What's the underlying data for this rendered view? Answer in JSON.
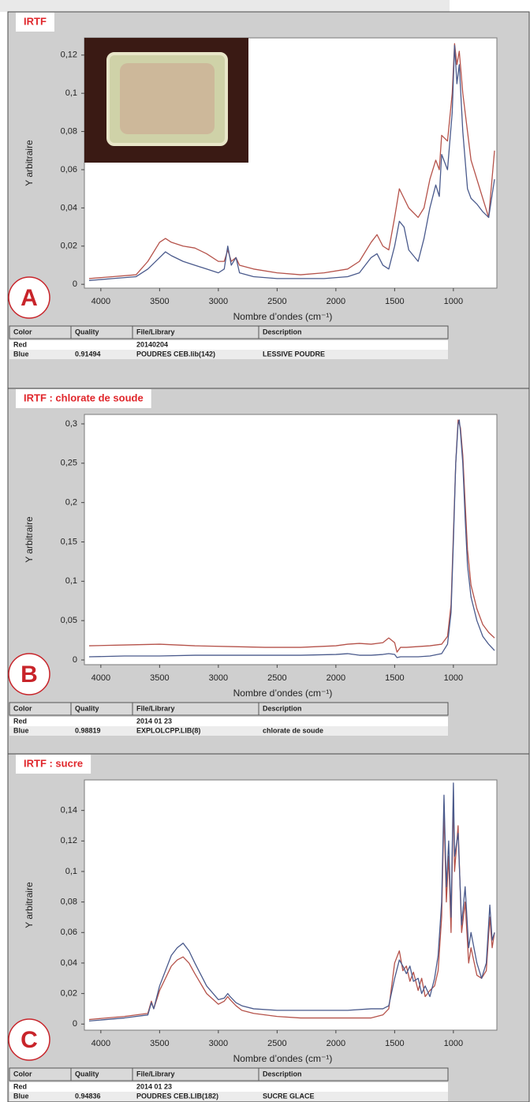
{
  "chart_data": [
    {
      "type": "line",
      "title": "IRTF",
      "panel_label": "A",
      "y_label": "Y arbitraire",
      "x_label": "Nombre d’ondes (cm⁻¹)",
      "xlim": [
        4140,
        630
      ],
      "xticks": [
        4000,
        3500,
        3000,
        2500,
        2000,
        1500,
        1000
      ],
      "ylim": [
        -0.002,
        0.129
      ],
      "yticks": [
        0,
        {
          "value": 0.02,
          "label": "0,02"
        },
        {
          "value": 0.04,
          "label": "0,04"
        },
        {
          "value": 0.06,
          "label": "0,06"
        },
        {
          "value": 0.08,
          "label": "0,08"
        },
        {
          "value": 0.1,
          "label": "0,1"
        },
        {
          "value": 0.12,
          "label": "0,12"
        }
      ],
      "x": [
        4100,
        3900,
        3700,
        3600,
        3500,
        3450,
        3400,
        3300,
        3200,
        3100,
        3000,
        2950,
        2920,
        2890,
        2850,
        2820,
        2700,
        2500,
        2300,
        2100,
        1900,
        1800,
        1700,
        1650,
        1600,
        1550,
        1500,
        1460,
        1420,
        1380,
        1300,
        1250,
        1200,
        1150,
        1120,
        1100,
        1050,
        1010,
        990,
        970,
        950,
        920,
        880,
        850,
        800,
        750,
        700,
        650
      ],
      "series": [
        {
          "color": "#b5524a",
          "values": [
            0.003,
            0.004,
            0.005,
            0.012,
            0.022,
            0.024,
            0.022,
            0.02,
            0.019,
            0.016,
            0.012,
            0.012,
            0.018,
            0.012,
            0.014,
            0.01,
            0.008,
            0.006,
            0.005,
            0.006,
            0.008,
            0.012,
            0.022,
            0.026,
            0.02,
            0.018,
            0.035,
            0.05,
            0.045,
            0.04,
            0.035,
            0.04,
            0.055,
            0.065,
            0.06,
            0.078,
            0.075,
            0.1,
            0.126,
            0.115,
            0.122,
            0.1,
            0.08,
            0.065,
            0.055,
            0.045,
            0.035,
            0.07
          ]
        },
        {
          "color": "#4a5a8c",
          "values": [
            0.002,
            0.003,
            0.004,
            0.008,
            0.014,
            0.017,
            0.015,
            0.012,
            0.01,
            0.008,
            0.006,
            0.008,
            0.02,
            0.01,
            0.014,
            0.006,
            0.004,
            0.003,
            0.003,
            0.003,
            0.004,
            0.006,
            0.014,
            0.016,
            0.01,
            0.008,
            0.02,
            0.033,
            0.03,
            0.018,
            0.012,
            0.024,
            0.04,
            0.052,
            0.046,
            0.068,
            0.06,
            0.09,
            0.125,
            0.105,
            0.115,
            0.08,
            0.05,
            0.045,
            0.042,
            0.038,
            0.035,
            0.055
          ]
        }
      ],
      "table": {
        "header": [
          "Color",
          "Quality",
          "File/Library",
          "Description"
        ],
        "rows": [
          [
            "Red",
            null,
            "20140204",
            null
          ],
          [
            "Blue",
            "0.91494",
            "POUDRES CEB.lib(142)",
            "LESSIVE POUDRE"
          ]
        ]
      }
    },
    {
      "type": "line",
      "title": "IRTF : chlorate de soude",
      "panel_label": "B",
      "y_label": "Y arbitraire",
      "x_label": "Nombre d’ondes (cm⁻¹)",
      "xlim": [
        4140,
        630
      ],
      "xticks": [
        4000,
        3500,
        3000,
        2500,
        2000,
        1500,
        1000
      ],
      "ylim": [
        -0.006,
        0.312
      ],
      "yticks": [
        0,
        {
          "value": 0.05,
          "label": "0,05"
        },
        {
          "value": 0.1,
          "label": "0,1"
        },
        {
          "value": 0.15,
          "label": "0,15"
        },
        {
          "value": 0.2,
          "label": "0,2"
        },
        {
          "value": 0.25,
          "label": "0,25"
        },
        {
          "value": 0.3,
          "label": "0,3"
        }
      ],
      "x": [
        4100,
        3800,
        3500,
        3200,
        2900,
        2600,
        2300,
        2000,
        1900,
        1800,
        1700,
        1600,
        1550,
        1500,
        1480,
        1450,
        1400,
        1300,
        1200,
        1100,
        1050,
        1020,
        1000,
        980,
        960,
        950,
        940,
        920,
        900,
        880,
        850,
        800,
        750,
        700,
        650
      ],
      "series": [
        {
          "color": "#b5524a",
          "values": [
            0.018,
            0.019,
            0.02,
            0.018,
            0.017,
            0.016,
            0.016,
            0.018,
            0.02,
            0.021,
            0.02,
            0.022,
            0.028,
            0.022,
            0.01,
            0.016,
            0.016,
            0.017,
            0.018,
            0.02,
            0.03,
            0.07,
            0.16,
            0.25,
            0.305,
            0.3,
            0.295,
            0.26,
            0.2,
            0.14,
            0.095,
            0.065,
            0.045,
            0.035,
            0.028
          ]
        },
        {
          "color": "#4a5a8c",
          "values": [
            0.004,
            0.005,
            0.005,
            0.006,
            0.006,
            0.006,
            0.006,
            0.007,
            0.008,
            0.006,
            0.006,
            0.007,
            0.008,
            0.007,
            0.003,
            0.004,
            0.004,
            0.004,
            0.005,
            0.008,
            0.02,
            0.06,
            0.15,
            0.25,
            0.3,
            0.305,
            0.29,
            0.25,
            0.18,
            0.12,
            0.08,
            0.05,
            0.03,
            0.02,
            0.012
          ]
        }
      ],
      "table": {
        "header": [
          "Color",
          "Quality",
          "File/Library",
          "Description"
        ],
        "rows": [
          [
            "Red",
            null,
            "2014 01 23",
            null
          ],
          [
            "Blue",
            "0.98819",
            "EXPLOLCPP.LIB(8)",
            "chlorate de soude"
          ]
        ]
      }
    },
    {
      "type": "line",
      "title": "IRTF : sucre",
      "panel_label": "C",
      "y_label": "Y arbitraire",
      "x_label": "Nombre d’ondes (cm⁻¹)",
      "xlim": [
        4140,
        630
      ],
      "xticks": [
        4000,
        3500,
        3000,
        2500,
        2000,
        1500,
        1000
      ],
      "ylim": [
        -0.004,
        0.16
      ],
      "yticks": [
        0,
        {
          "value": 0.02,
          "label": "0,02"
        },
        {
          "value": 0.04,
          "label": "0,04"
        },
        {
          "value": 0.06,
          "label": "0,06"
        },
        {
          "value": 0.08,
          "label": "0,08"
        },
        {
          "value": 0.1,
          "label": "0,1"
        },
        {
          "value": 0.12,
          "label": "0,12"
        },
        {
          "value": 0.14,
          "label": "0,14"
        }
      ],
      "x": [
        4100,
        3800,
        3600,
        3570,
        3550,
        3500,
        3400,
        3350,
        3300,
        3250,
        3200,
        3100,
        3000,
        2950,
        2920,
        2900,
        2850,
        2800,
        2700,
        2500,
        2300,
        2100,
        1900,
        1700,
        1600,
        1550,
        1500,
        1460,
        1430,
        1400,
        1370,
        1340,
        1300,
        1270,
        1240,
        1200,
        1160,
        1130,
        1100,
        1080,
        1060,
        1040,
        1020,
        1000,
        990,
        960,
        930,
        900,
        870,
        850,
        800,
        760,
        720,
        690,
        670,
        650
      ],
      "series": [
        {
          "color": "#b5524a",
          "values": [
            0.003,
            0.005,
            0.007,
            0.015,
            0.01,
            0.022,
            0.038,
            0.042,
            0.044,
            0.04,
            0.033,
            0.02,
            0.013,
            0.015,
            0.018,
            0.016,
            0.012,
            0.009,
            0.007,
            0.005,
            0.004,
            0.004,
            0.004,
            0.004,
            0.006,
            0.01,
            0.04,
            0.048,
            0.035,
            0.038,
            0.028,
            0.034,
            0.022,
            0.03,
            0.018,
            0.022,
            0.025,
            0.035,
            0.07,
            0.14,
            0.08,
            0.11,
            0.06,
            0.15,
            0.1,
            0.13,
            0.06,
            0.08,
            0.04,
            0.05,
            0.032,
            0.03,
            0.035,
            0.07,
            0.05,
            0.06
          ]
        },
        {
          "color": "#4a5a8c",
          "values": [
            0.002,
            0.004,
            0.006,
            0.014,
            0.01,
            0.025,
            0.045,
            0.05,
            0.053,
            0.048,
            0.04,
            0.025,
            0.016,
            0.017,
            0.02,
            0.018,
            0.014,
            0.012,
            0.01,
            0.009,
            0.009,
            0.009,
            0.009,
            0.01,
            0.01,
            0.012,
            0.03,
            0.042,
            0.038,
            0.033,
            0.038,
            0.028,
            0.03,
            0.02,
            0.025,
            0.018,
            0.03,
            0.045,
            0.08,
            0.15,
            0.09,
            0.12,
            0.07,
            0.158,
            0.11,
            0.125,
            0.065,
            0.09,
            0.05,
            0.06,
            0.04,
            0.03,
            0.04,
            0.078,
            0.055,
            0.06
          ]
        }
      ],
      "table": {
        "header": [
          "Color",
          "Quality",
          "File/Library",
          "Description"
        ],
        "rows": [
          [
            "Red",
            null,
            "2014 01 23",
            null
          ],
          [
            "Blue",
            "0.94836",
            "POUDRES CEB.LIB(182)",
            "SUCRE GLACE"
          ]
        ]
      }
    }
  ]
}
